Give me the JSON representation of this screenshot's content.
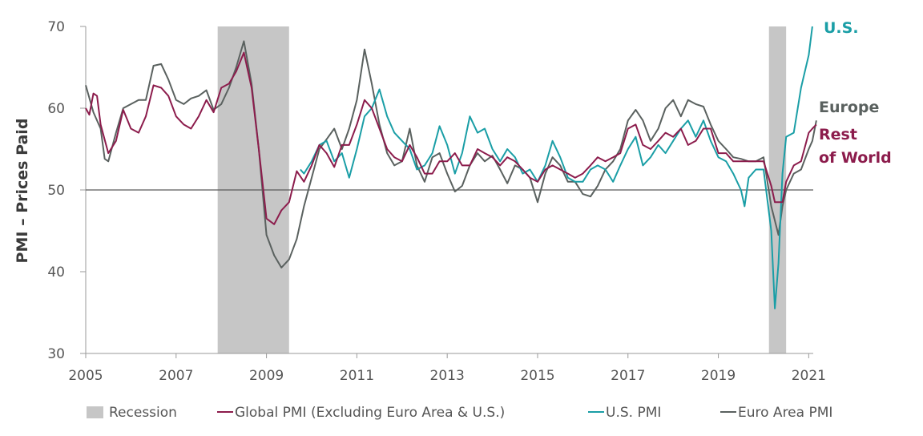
{
  "chart_data": {
    "type": "line",
    "title": "",
    "xlabel": "",
    "ylabel": "PMI – Prices Paid",
    "xlim": [
      2005,
      2021.1
    ],
    "ylim": [
      30,
      70
    ],
    "x_ticks": [
      2005,
      2007,
      2009,
      2011,
      2013,
      2015,
      2017,
      2019,
      2021
    ],
    "y_ticks": [
      30,
      40,
      50,
      60,
      70
    ],
    "x_tick_labels": [
      "2005",
      "2007",
      "2009",
      "2011",
      "2013",
      "2015",
      "2017",
      "2019",
      "2021"
    ],
    "y_tick_labels": [
      "30",
      "40",
      "50",
      "60",
      "70"
    ],
    "reference_line": 50,
    "grid": false,
    "legend_position": "bottom",
    "recessions": [
      {
        "name": "Recession",
        "start": 2007.92,
        "end": 2009.5
      },
      {
        "name": "Recession",
        "start": 2020.12,
        "end": 2020.5
      }
    ],
    "end_labels": [
      {
        "text": "U.S.",
        "series": "U.S. PMI",
        "color": "#1a9ea6"
      },
      {
        "text": "Europe",
        "series": "Euro Area PMI",
        "color": "#5a615f"
      },
      {
        "text": "Rest",
        "series": "Global PMI (Excluding Euro Area & U.S.)",
        "color": "#8c1c4c"
      },
      {
        "text": "of World",
        "series": "Global PMI (Excluding Euro Area & U.S.)",
        "color": "#8c1c4c"
      }
    ],
    "series": [
      {
        "name": "Euro Area PMI",
        "color": "#5a615f",
        "points": [
          [
            2005.0,
            62.8
          ],
          [
            2005.17,
            59.5
          ],
          [
            2005.33,
            57.5
          ],
          [
            2005.42,
            53.8
          ],
          [
            2005.5,
            53.5
          ],
          [
            2005.67,
            57.0
          ],
          [
            2005.83,
            60.0
          ],
          [
            2006.0,
            60.5
          ],
          [
            2006.17,
            61.0
          ],
          [
            2006.33,
            61.0
          ],
          [
            2006.5,
            65.2
          ],
          [
            2006.67,
            65.4
          ],
          [
            2006.83,
            63.5
          ],
          [
            2007.0,
            61.0
          ],
          [
            2007.17,
            60.5
          ],
          [
            2007.33,
            61.2
          ],
          [
            2007.5,
            61.5
          ],
          [
            2007.67,
            62.2
          ],
          [
            2007.83,
            59.8
          ],
          [
            2008.0,
            60.5
          ],
          [
            2008.17,
            62.5
          ],
          [
            2008.33,
            65.0
          ],
          [
            2008.5,
            68.2
          ],
          [
            2008.67,
            63.0
          ],
          [
            2008.83,
            55.0
          ],
          [
            2009.0,
            44.5
          ],
          [
            2009.17,
            42.0
          ],
          [
            2009.33,
            40.5
          ],
          [
            2009.5,
            41.5
          ],
          [
            2009.67,
            44.0
          ],
          [
            2009.83,
            48.0
          ],
          [
            2010.0,
            51.5
          ],
          [
            2010.17,
            55.0
          ],
          [
            2010.33,
            56.2
          ],
          [
            2010.5,
            57.5
          ],
          [
            2010.67,
            55.0
          ],
          [
            2010.83,
            57.5
          ],
          [
            2011.0,
            61.0
          ],
          [
            2011.17,
            67.2
          ],
          [
            2011.33,
            63.0
          ],
          [
            2011.5,
            58.0
          ],
          [
            2011.67,
            54.5
          ],
          [
            2011.83,
            53.0
          ],
          [
            2012.0,
            53.5
          ],
          [
            2012.17,
            57.5
          ],
          [
            2012.33,
            53.0
          ],
          [
            2012.5,
            51.0
          ],
          [
            2012.67,
            54.0
          ],
          [
            2012.83,
            54.5
          ],
          [
            2013.0,
            52.0
          ],
          [
            2013.17,
            49.8
          ],
          [
            2013.33,
            50.5
          ],
          [
            2013.5,
            53.0
          ],
          [
            2013.67,
            54.5
          ],
          [
            2013.83,
            53.5
          ],
          [
            2014.0,
            54.2
          ],
          [
            2014.17,
            52.5
          ],
          [
            2014.33,
            50.8
          ],
          [
            2014.5,
            53.0
          ],
          [
            2014.67,
            52.5
          ],
          [
            2014.83,
            51.5
          ],
          [
            2015.0,
            48.5
          ],
          [
            2015.17,
            52.0
          ],
          [
            2015.33,
            54.0
          ],
          [
            2015.5,
            53.0
          ],
          [
            2015.67,
            51.0
          ],
          [
            2015.83,
            51.0
          ],
          [
            2016.0,
            49.5
          ],
          [
            2016.17,
            49.2
          ],
          [
            2016.33,
            50.5
          ],
          [
            2016.5,
            52.5
          ],
          [
            2016.67,
            53.5
          ],
          [
            2016.83,
            55.0
          ],
          [
            2017.0,
            58.5
          ],
          [
            2017.17,
            59.8
          ],
          [
            2017.33,
            58.5
          ],
          [
            2017.5,
            56.0
          ],
          [
            2017.67,
            57.5
          ],
          [
            2017.83,
            60.0
          ],
          [
            2018.0,
            61.0
          ],
          [
            2018.17,
            59.0
          ],
          [
            2018.33,
            61.0
          ],
          [
            2018.5,
            60.5
          ],
          [
            2018.67,
            60.2
          ],
          [
            2018.83,
            58.0
          ],
          [
            2019.0,
            56.0
          ],
          [
            2019.17,
            55.0
          ],
          [
            2019.33,
            54.0
          ],
          [
            2019.5,
            53.8
          ],
          [
            2019.67,
            53.5
          ],
          [
            2019.83,
            53.5
          ],
          [
            2020.0,
            54.0
          ],
          [
            2020.17,
            48.0
          ],
          [
            2020.33,
            44.5
          ],
          [
            2020.42,
            48.0
          ],
          [
            2020.5,
            50.0
          ],
          [
            2020.67,
            52.0
          ],
          [
            2020.83,
            52.5
          ],
          [
            2021.0,
            55.0
          ],
          [
            2021.08,
            56.0
          ],
          [
            2021.17,
            58.5
          ]
        ]
      },
      {
        "name": "U.S. PMI",
        "color": "#1a9ea6",
        "points": [
          [
            2009.75,
            52.5
          ],
          [
            2009.83,
            52.0
          ],
          [
            2010.0,
            53.5
          ],
          [
            2010.17,
            55.5
          ],
          [
            2010.33,
            56.0
          ],
          [
            2010.5,
            53.5
          ],
          [
            2010.67,
            54.5
          ],
          [
            2010.83,
            51.5
          ],
          [
            2011.0,
            55.0
          ],
          [
            2011.17,
            59.0
          ],
          [
            2011.33,
            60.0
          ],
          [
            2011.5,
            62.3
          ],
          [
            2011.67,
            59.0
          ],
          [
            2011.83,
            57.0
          ],
          [
            2012.0,
            56.0
          ],
          [
            2012.17,
            55.0
          ],
          [
            2012.33,
            52.5
          ],
          [
            2012.5,
            53.0
          ],
          [
            2012.67,
            54.5
          ],
          [
            2012.83,
            57.8
          ],
          [
            2013.0,
            55.5
          ],
          [
            2013.17,
            52.0
          ],
          [
            2013.33,
            54.5
          ],
          [
            2013.5,
            59.0
          ],
          [
            2013.67,
            57.0
          ],
          [
            2013.83,
            57.5
          ],
          [
            2014.0,
            55.0
          ],
          [
            2014.17,
            53.5
          ],
          [
            2014.33,
            55.0
          ],
          [
            2014.5,
            54.0
          ],
          [
            2014.67,
            52.0
          ],
          [
            2014.83,
            52.5
          ],
          [
            2015.0,
            51.0
          ],
          [
            2015.17,
            53.0
          ],
          [
            2015.33,
            56.0
          ],
          [
            2015.5,
            54.0
          ],
          [
            2015.67,
            51.5
          ],
          [
            2015.83,
            51.0
          ],
          [
            2016.0,
            51.0
          ],
          [
            2016.17,
            52.5
          ],
          [
            2016.33,
            53.0
          ],
          [
            2016.5,
            52.5
          ],
          [
            2016.67,
            51.0
          ],
          [
            2016.83,
            53.0
          ],
          [
            2017.0,
            55.0
          ],
          [
            2017.17,
            56.5
          ],
          [
            2017.33,
            53.0
          ],
          [
            2017.5,
            54.0
          ],
          [
            2017.67,
            55.5
          ],
          [
            2017.83,
            54.5
          ],
          [
            2018.0,
            56.0
          ],
          [
            2018.17,
            57.5
          ],
          [
            2018.33,
            58.5
          ],
          [
            2018.5,
            56.5
          ],
          [
            2018.67,
            58.5
          ],
          [
            2018.83,
            56.0
          ],
          [
            2019.0,
            54.0
          ],
          [
            2019.17,
            53.5
          ],
          [
            2019.33,
            52.0
          ],
          [
            2019.5,
            50.0
          ],
          [
            2019.58,
            48.0
          ],
          [
            2019.67,
            51.5
          ],
          [
            2019.83,
            52.5
          ],
          [
            2020.0,
            52.5
          ],
          [
            2020.17,
            45.0
          ],
          [
            2020.25,
            35.5
          ],
          [
            2020.33,
            41.0
          ],
          [
            2020.42,
            52.0
          ],
          [
            2020.5,
            56.5
          ],
          [
            2020.67,
            57.0
          ],
          [
            2020.83,
            62.5
          ],
          [
            2021.0,
            66.5
          ],
          [
            2021.08,
            70.0
          ]
        ]
      },
      {
        "name": "Global PMI (Excluding Euro Area & U.S.)",
        "color": "#8c1c4c",
        "points": [
          [
            2005.0,
            60.0
          ],
          [
            2005.08,
            59.2
          ],
          [
            2005.17,
            61.8
          ],
          [
            2005.25,
            61.5
          ],
          [
            2005.33,
            58.0
          ],
          [
            2005.5,
            54.5
          ],
          [
            2005.67,
            56.0
          ],
          [
            2005.83,
            59.8
          ],
          [
            2006.0,
            57.5
          ],
          [
            2006.17,
            57.0
          ],
          [
            2006.33,
            59.0
          ],
          [
            2006.5,
            62.8
          ],
          [
            2006.67,
            62.5
          ],
          [
            2006.83,
            61.5
          ],
          [
            2007.0,
            59.0
          ],
          [
            2007.17,
            58.0
          ],
          [
            2007.33,
            57.5
          ],
          [
            2007.5,
            59.0
          ],
          [
            2007.67,
            61.0
          ],
          [
            2007.83,
            59.5
          ],
          [
            2008.0,
            62.5
          ],
          [
            2008.17,
            63.0
          ],
          [
            2008.33,
            64.5
          ],
          [
            2008.5,
            66.8
          ],
          [
            2008.67,
            62.5
          ],
          [
            2008.83,
            55.0
          ],
          [
            2009.0,
            46.5
          ],
          [
            2009.17,
            45.8
          ],
          [
            2009.33,
            47.5
          ],
          [
            2009.5,
            48.5
          ],
          [
            2009.67,
            52.3
          ],
          [
            2009.83,
            51.0
          ],
          [
            2010.0,
            53.0
          ],
          [
            2010.17,
            55.5
          ],
          [
            2010.33,
            54.5
          ],
          [
            2010.5,
            52.8
          ],
          [
            2010.67,
            55.5
          ],
          [
            2010.83,
            55.5
          ],
          [
            2011.0,
            58.0
          ],
          [
            2011.17,
            61.0
          ],
          [
            2011.33,
            60.0
          ],
          [
            2011.5,
            57.5
          ],
          [
            2011.67,
            55.0
          ],
          [
            2011.83,
            54.0
          ],
          [
            2012.0,
            53.5
          ],
          [
            2012.17,
            55.5
          ],
          [
            2012.33,
            54.0
          ],
          [
            2012.5,
            52.0
          ],
          [
            2012.67,
            52.0
          ],
          [
            2012.83,
            53.5
          ],
          [
            2013.0,
            53.5
          ],
          [
            2013.17,
            54.5
          ],
          [
            2013.33,
            53.0
          ],
          [
            2013.5,
            53.0
          ],
          [
            2013.67,
            55.0
          ],
          [
            2013.83,
            54.5
          ],
          [
            2014.0,
            54.0
          ],
          [
            2014.17,
            53.0
          ],
          [
            2014.33,
            54.0
          ],
          [
            2014.5,
            53.5
          ],
          [
            2014.67,
            52.5
          ],
          [
            2014.83,
            51.5
          ],
          [
            2015.0,
            51.0
          ],
          [
            2015.17,
            52.5
          ],
          [
            2015.33,
            53.0
          ],
          [
            2015.5,
            52.5
          ],
          [
            2015.67,
            52.0
          ],
          [
            2015.83,
            51.5
          ],
          [
            2016.0,
            52.0
          ],
          [
            2016.17,
            53.0
          ],
          [
            2016.33,
            54.0
          ],
          [
            2016.5,
            53.5
          ],
          [
            2016.67,
            54.0
          ],
          [
            2016.83,
            54.5
          ],
          [
            2017.0,
            57.5
          ],
          [
            2017.17,
            58.0
          ],
          [
            2017.33,
            55.5
          ],
          [
            2017.5,
            55.0
          ],
          [
            2017.67,
            56.0
          ],
          [
            2017.83,
            57.0
          ],
          [
            2018.0,
            56.5
          ],
          [
            2018.17,
            57.5
          ],
          [
            2018.33,
            55.5
          ],
          [
            2018.5,
            56.0
          ],
          [
            2018.67,
            57.5
          ],
          [
            2018.83,
            57.5
          ],
          [
            2019.0,
            54.5
          ],
          [
            2019.17,
            54.5
          ],
          [
            2019.33,
            53.5
          ],
          [
            2019.5,
            53.5
          ],
          [
            2019.67,
            53.5
          ],
          [
            2019.83,
            53.5
          ],
          [
            2020.0,
            53.5
          ],
          [
            2020.17,
            50.5
          ],
          [
            2020.25,
            48.5
          ],
          [
            2020.42,
            48.5
          ],
          [
            2020.5,
            51.0
          ],
          [
            2020.67,
            53.0
          ],
          [
            2020.83,
            53.5
          ],
          [
            2021.0,
            57.0
          ],
          [
            2021.08,
            57.5
          ],
          [
            2021.17,
            58.0
          ]
        ]
      }
    ],
    "legend": [
      {
        "label": "Recession",
        "kind": "box",
        "color": "#c6c6c6"
      },
      {
        "label": "Global PMI (Excluding Euro Area & U.S.)",
        "kind": "line",
        "color": "#8c1c4c"
      },
      {
        "label": "U.S. PMI",
        "kind": "line",
        "color": "#1a9ea6"
      },
      {
        "label": "Euro Area PMI",
        "kind": "line",
        "color": "#5a615f"
      }
    ]
  }
}
